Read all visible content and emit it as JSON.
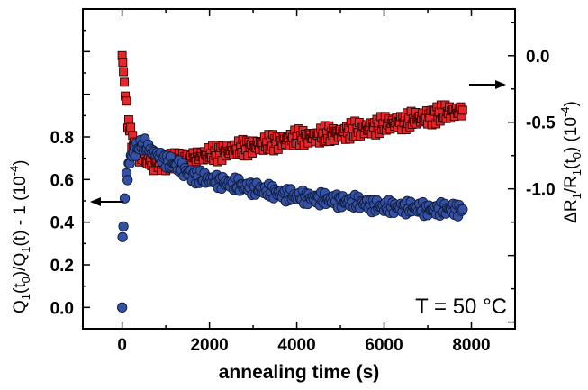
{
  "chart_data": {
    "type": "scatter",
    "xlabel": "annealing time (s)",
    "xlim": [
      -900,
      9000
    ],
    "xticks": [
      0,
      2000,
      4000,
      6000,
      8000
    ],
    "xtick_labels": [
      "0",
      "2000",
      "4000",
      "6000",
      "8000"
    ],
    "left_axis": {
      "label_parts": [
        "Q",
        "1",
        "(t",
        "0",
        ")/Q",
        "1",
        "(t) - 1 (10",
        "-4",
        ")"
      ],
      "ylim": [
        -0.1,
        1.4
      ],
      "ticks": [
        0.0,
        0.2,
        0.4,
        0.6,
        0.8
      ],
      "tick_labels": [
        "0.0",
        "0.2",
        "0.4",
        "0.6",
        "0.8"
      ]
    },
    "right_axis": {
      "label_parts": [
        "ΔR",
        "1",
        "/R",
        "1",
        "(t",
        "0",
        ") (10",
        "-4",
        ")"
      ],
      "ylim": [
        -2.05,
        0.35
      ],
      "ticks": [
        0.0,
        -0.5,
        -1.0
      ],
      "tick_labels": [
        "0.0",
        "-0.5",
        "-1.0"
      ]
    },
    "annotation": "T = 50 °C",
    "series": [
      {
        "axis": "right",
        "marker": "square",
        "color": "#e8262a",
        "edge": "#2a0000",
        "points": [
          [
            0,
            0.0
          ],
          [
            15,
            -0.05
          ],
          [
            30,
            -0.12
          ],
          [
            50,
            -0.2
          ],
          [
            70,
            -0.3
          ],
          [
            100,
            -0.4
          ],
          [
            130,
            -0.48
          ],
          [
            170,
            -0.55
          ],
          [
            220,
            -0.62
          ],
          [
            280,
            -0.68
          ],
          [
            350,
            -0.72
          ],
          [
            450,
            -0.75
          ],
          [
            550,
            -0.78
          ],
          [
            700,
            -0.8
          ],
          [
            850,
            -0.81
          ],
          [
            1000,
            -0.8
          ],
          [
            1300,
            -0.79
          ],
          [
            1600,
            -0.77
          ],
          [
            2000,
            -0.74
          ],
          [
            2500,
            -0.71
          ],
          [
            3000,
            -0.68
          ],
          [
            3500,
            -0.65
          ],
          [
            4000,
            -0.62
          ],
          [
            4500,
            -0.6
          ],
          [
            5000,
            -0.58
          ],
          [
            5500,
            -0.55
          ],
          [
            6000,
            -0.52
          ],
          [
            6500,
            -0.49
          ],
          [
            7000,
            -0.46
          ],
          [
            7400,
            -0.43
          ],
          [
            7800,
            -0.41
          ]
        ]
      },
      {
        "axis": "left",
        "marker": "circle",
        "color": "#3551a4",
        "edge": "#0f1a3a",
        "points": [
          [
            0,
            0.0
          ],
          [
            10,
            0.33
          ],
          [
            30,
            0.38
          ],
          [
            60,
            0.5
          ],
          [
            100,
            0.6
          ],
          [
            150,
            0.66
          ],
          [
            200,
            0.7
          ],
          [
            260,
            0.73
          ],
          [
            330,
            0.75
          ],
          [
            420,
            0.76
          ],
          [
            520,
            0.76
          ],
          [
            650,
            0.74
          ],
          [
            800,
            0.72
          ],
          [
            1000,
            0.69
          ],
          [
            1300,
            0.66
          ],
          [
            1600,
            0.62
          ],
          [
            2000,
            0.6
          ],
          [
            2500,
            0.58
          ],
          [
            3000,
            0.56
          ],
          [
            3500,
            0.54
          ],
          [
            4000,
            0.52
          ],
          [
            4500,
            0.51
          ],
          [
            5000,
            0.5
          ],
          [
            5500,
            0.49
          ],
          [
            6000,
            0.47
          ],
          [
            6500,
            0.47
          ],
          [
            7000,
            0.46
          ],
          [
            7500,
            0.46
          ],
          [
            7800,
            0.46
          ]
        ]
      }
    ]
  }
}
